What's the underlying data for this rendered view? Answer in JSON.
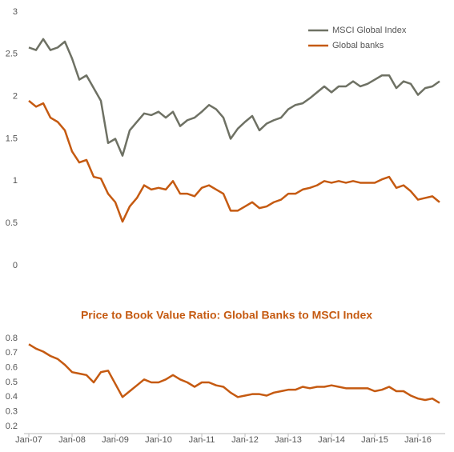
{
  "chart_data": [
    {
      "type": "line",
      "series": [
        {
          "name": "MSCI Global Index",
          "color": "#6e7164",
          "values": [
            2.58,
            2.55,
            2.68,
            2.55,
            2.58,
            2.65,
            2.45,
            2.2,
            2.25,
            2.1,
            1.95,
            1.45,
            1.5,
            1.3,
            1.6,
            1.7,
            1.8,
            1.78,
            1.82,
            1.75,
            1.82,
            1.65,
            1.72,
            1.75,
            1.82,
            1.9,
            1.85,
            1.75,
            1.5,
            1.62,
            1.7,
            1.77,
            1.6,
            1.68,
            1.72,
            1.75,
            1.85,
            1.9,
            1.92,
            1.98,
            2.05,
            2.12,
            2.05,
            2.12,
            2.12,
            2.18,
            2.12,
            2.15,
            2.2,
            2.25,
            2.25,
            2.1,
            2.18,
            2.15,
            2.02,
            2.1,
            2.12,
            2.18
          ]
        },
        {
          "name": "Global banks",
          "color": "#c55a11",
          "values": [
            1.95,
            1.88,
            1.92,
            1.75,
            1.7,
            1.6,
            1.35,
            1.22,
            1.25,
            1.05,
            1.03,
            0.85,
            0.75,
            0.52,
            0.7,
            0.8,
            0.95,
            0.9,
            0.92,
            0.9,
            1.0,
            0.85,
            0.85,
            0.82,
            0.92,
            0.95,
            0.9,
            0.85,
            0.65,
            0.65,
            0.7,
            0.75,
            0.68,
            0.7,
            0.75,
            0.78,
            0.85,
            0.85,
            0.9,
            0.92,
            0.95,
            1.0,
            0.98,
            1.0,
            0.98,
            1.0,
            0.98,
            0.98,
            0.98,
            1.02,
            1.05,
            0.92,
            0.95,
            0.88,
            0.78,
            0.8,
            0.82,
            0.75
          ]
        }
      ],
      "ylim": [
        0,
        3
      ],
      "yticks": [
        0,
        0.5,
        1,
        1.5,
        2,
        2.5,
        3
      ],
      "legend": "upper right"
    },
    {
      "type": "line",
      "title": "Price to Book Value Ratio: Global Banks to MSCI Index",
      "color": "#c55a11",
      "categories": [
        "Jan-07",
        null,
        null,
        null,
        null,
        null,
        "Jan-08",
        null,
        null,
        null,
        null,
        null,
        "Jan-09",
        null,
        null,
        null,
        null,
        null,
        "Jan-10",
        null,
        null,
        null,
        null,
        null,
        "Jan-11",
        null,
        null,
        null,
        null,
        null,
        "Jan-12",
        null,
        null,
        null,
        null,
        null,
        "Jan-13",
        null,
        null,
        null,
        null,
        null,
        "Jan-14",
        null,
        null,
        null,
        null,
        null,
        "Jan-15",
        null,
        null,
        null,
        null,
        null,
        "Jan-16",
        null,
        null,
        null
      ],
      "values": [
        0.76,
        0.73,
        0.71,
        0.68,
        0.66,
        0.62,
        0.57,
        0.56,
        0.55,
        0.5,
        0.57,
        0.58,
        0.49,
        0.4,
        0.44,
        0.48,
        0.52,
        0.5,
        0.5,
        0.52,
        0.55,
        0.52,
        0.5,
        0.47,
        0.5,
        0.5,
        0.48,
        0.47,
        0.43,
        0.4,
        0.41,
        0.42,
        0.42,
        0.41,
        0.43,
        0.44,
        0.45,
        0.45,
        0.47,
        0.46,
        0.47,
        0.47,
        0.48,
        0.47,
        0.46,
        0.46,
        0.46,
        0.46,
        0.44,
        0.45,
        0.47,
        0.44,
        0.44,
        0.41,
        0.39,
        0.38,
        0.39,
        0.36
      ],
      "ylim": [
        0.2,
        0.8
      ],
      "yticks": [
        0.2,
        0.3,
        0.4,
        0.5,
        0.6,
        0.7,
        0.8
      ]
    }
  ]
}
